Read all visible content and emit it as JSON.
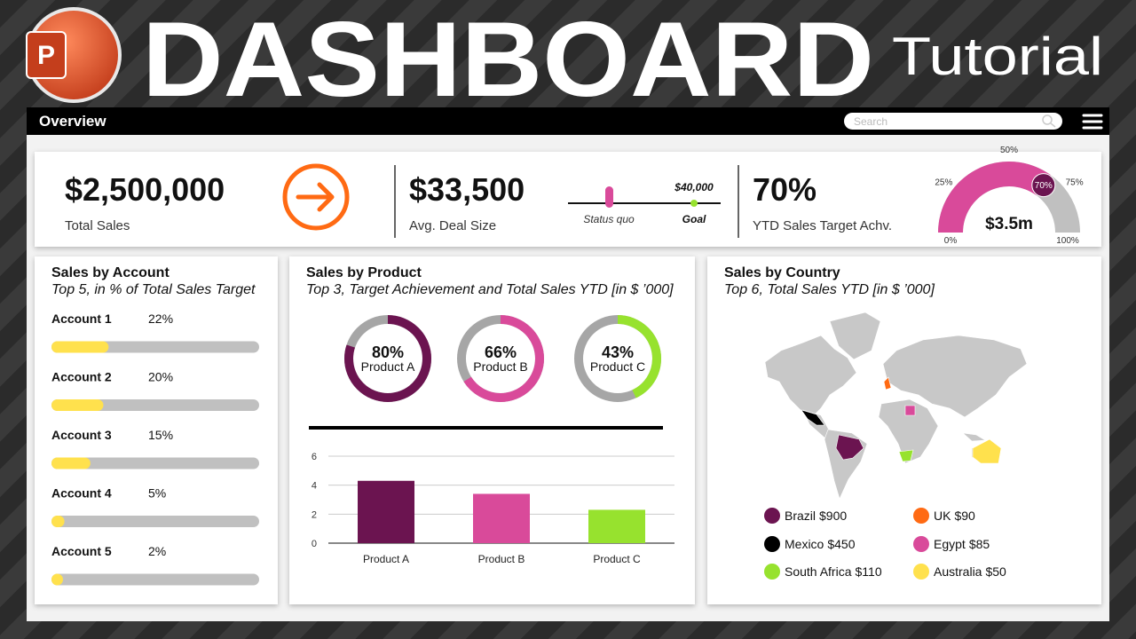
{
  "header": {
    "logo": "P",
    "title": "DASHBOARD",
    "subtitle": "Tutorial"
  },
  "toolbar": {
    "title": "Overview",
    "search": "Search"
  },
  "kpis": {
    "total_sales": {
      "value": "$2,500,000",
      "label": "Total Sales"
    },
    "avg_deal": {
      "value": "$33,500",
      "label": "Avg. Deal Size",
      "goal": "$40,000",
      "status_label": "Status quo",
      "goal_label": "Goal"
    },
    "target": {
      "label": "YTD Sales Target Achv."
    }
  },
  "chart_data": [
    {
      "type": "gauge",
      "values": [
        70
      ],
      "value_labels": [
        "70%"
      ],
      "ylim": [
        0,
        100
      ],
      "yticks": [
        {
          "value": 0,
          "label": "0%"
        },
        {
          "value": 25,
          "label": "25%"
        },
        {
          "value": 50,
          "label": "50%"
        },
        {
          "value": 75,
          "label": "75%"
        },
        {
          "value": 100,
          "label": "100%"
        }
      ],
      "center_label": "$3.5m",
      "color": "#d94a9a",
      "track_color": "#c0c0c0",
      "marker_color": "#6b1450"
    },
    {
      "type": "progress",
      "title": "Sales by Account",
      "subtitle": "Top 5, in % of Total Sales Target",
      "categories": [
        "Account 1",
        "Account 2",
        "Account 3",
        "Account 4",
        "Account 5"
      ],
      "values": [
        22,
        20,
        15,
        5,
        2
      ],
      "value_labels": [
        "22%",
        "20%",
        "15%",
        "5%",
        "2%"
      ],
      "xlim": [
        0,
        80
      ],
      "color": "#ffe14d",
      "track_color": "#c0c0c0"
    },
    {
      "type": "donut",
      "title": "Sales by Product",
      "subtitle": "Top 3, Target Achievement and Total Sales YTD [in $ ’000]",
      "categories": [
        "Product A",
        "Product B",
        "Product C"
      ],
      "values": [
        80,
        66,
        43
      ],
      "value_labels": [
        "80%",
        "66%",
        "43%"
      ],
      "ylim": [
        0,
        100
      ],
      "colors": [
        "#6b1450",
        "#d94a9a",
        "#97e22e"
      ],
      "track_color": "#a6a6a6"
    },
    {
      "type": "bar",
      "categories": [
        "Product A",
        "Product B",
        "Product C"
      ],
      "values": [
        4.3,
        3.4,
        2.3
      ],
      "ylim": [
        0,
        6
      ],
      "yticks": [
        0,
        2,
        4,
        6
      ],
      "grid": true,
      "colors": [
        "#6b1450",
        "#d94a9a",
        "#97e22e"
      ]
    },
    {
      "type": "map",
      "title": "Sales by Country",
      "subtitle": "Top 6, Total Sales YTD [in $ ’000]",
      "categories": [
        "Brazil",
        "Mexico",
        "South Africa",
        "UK",
        "Egypt",
        "Australia"
      ],
      "values": [
        900,
        450,
        110,
        90,
        85,
        50
      ],
      "value_labels": [
        "$900",
        "$450",
        "$110",
        "$90",
        "$85",
        "$50"
      ],
      "colors": [
        "#6b1450",
        "#000000",
        "#97e22e",
        "#ff6a13",
        "#d94a9a",
        "#ffe14d"
      ]
    }
  ]
}
